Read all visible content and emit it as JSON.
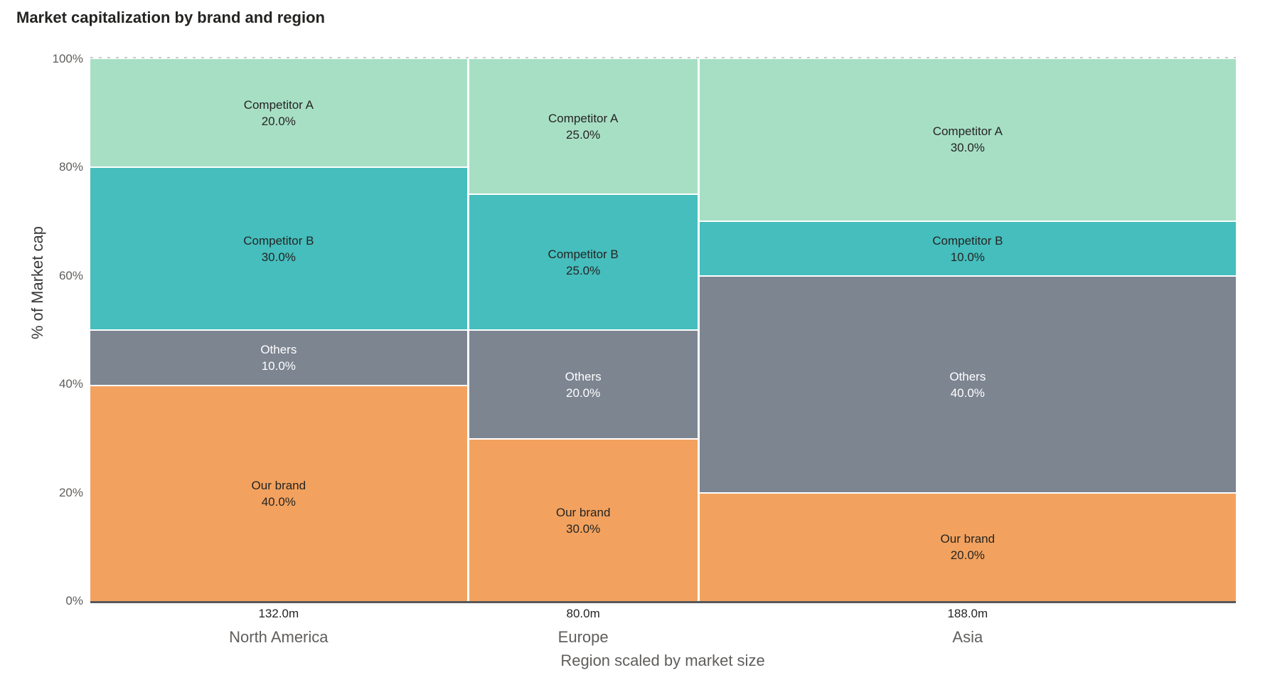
{
  "page": {
    "background": "#FFFFFF"
  },
  "chart_data": {
    "type": "marimekko",
    "title": "Market capitalization by brand and region",
    "xlabel": "Region scaled by market size",
    "ylabel": "% of Market cap",
    "ylim": [
      0,
      100
    ],
    "y_ticks": [
      "100%",
      "80%",
      "60%",
      "40%",
      "20%",
      "0%"
    ],
    "grid": "dashed-line-at-100-only",
    "legend": "none-labels-inside-segments",
    "stack_order_top_to_bottom": [
      "Competitor A",
      "Competitor B",
      "Others",
      "Our brand"
    ],
    "colors": {
      "Competitor A": "#A7DFC5",
      "Competitor B": "#45BEBD",
      "Others": "#7D8591",
      "Our brand": "#F2A25E"
    },
    "label_text_colors": {
      "Competitor A": "#252423",
      "Competitor B": "#252423",
      "Others": "#FFFFFF",
      "Our brand": "#252423"
    },
    "axis_line_color": "#56575B",
    "regions": [
      {
        "name": "North America",
        "market_size": 132,
        "market_size_label": "132.0m",
        "segments": [
          {
            "brand": "Competitor A",
            "value": 20,
            "value_label": "20.0%"
          },
          {
            "brand": "Competitor B",
            "value": 30,
            "value_label": "30.0%"
          },
          {
            "brand": "Others",
            "value": 10,
            "value_label": "10.0%"
          },
          {
            "brand": "Our brand",
            "value": 40,
            "value_label": "40.0%"
          }
        ]
      },
      {
        "name": "Europe",
        "market_size": 80,
        "market_size_label": "80.0m",
        "segments": [
          {
            "brand": "Competitor A",
            "value": 25,
            "value_label": "25.0%"
          },
          {
            "brand": "Competitor B",
            "value": 25,
            "value_label": "25.0%"
          },
          {
            "brand": "Others",
            "value": 20,
            "value_label": "20.0%"
          },
          {
            "brand": "Our brand",
            "value": 30,
            "value_label": "30.0%"
          }
        ]
      },
      {
        "name": "Asia",
        "market_size": 188,
        "market_size_label": "188.0m",
        "segments": [
          {
            "brand": "Competitor A",
            "value": 30,
            "value_label": "30.0%"
          },
          {
            "brand": "Competitor B",
            "value": 10,
            "value_label": "10.0%"
          },
          {
            "brand": "Others",
            "value": 40,
            "value_label": "40.0%"
          },
          {
            "brand": "Our brand",
            "value": 20,
            "value_label": "20.0%"
          }
        ]
      }
    ]
  }
}
